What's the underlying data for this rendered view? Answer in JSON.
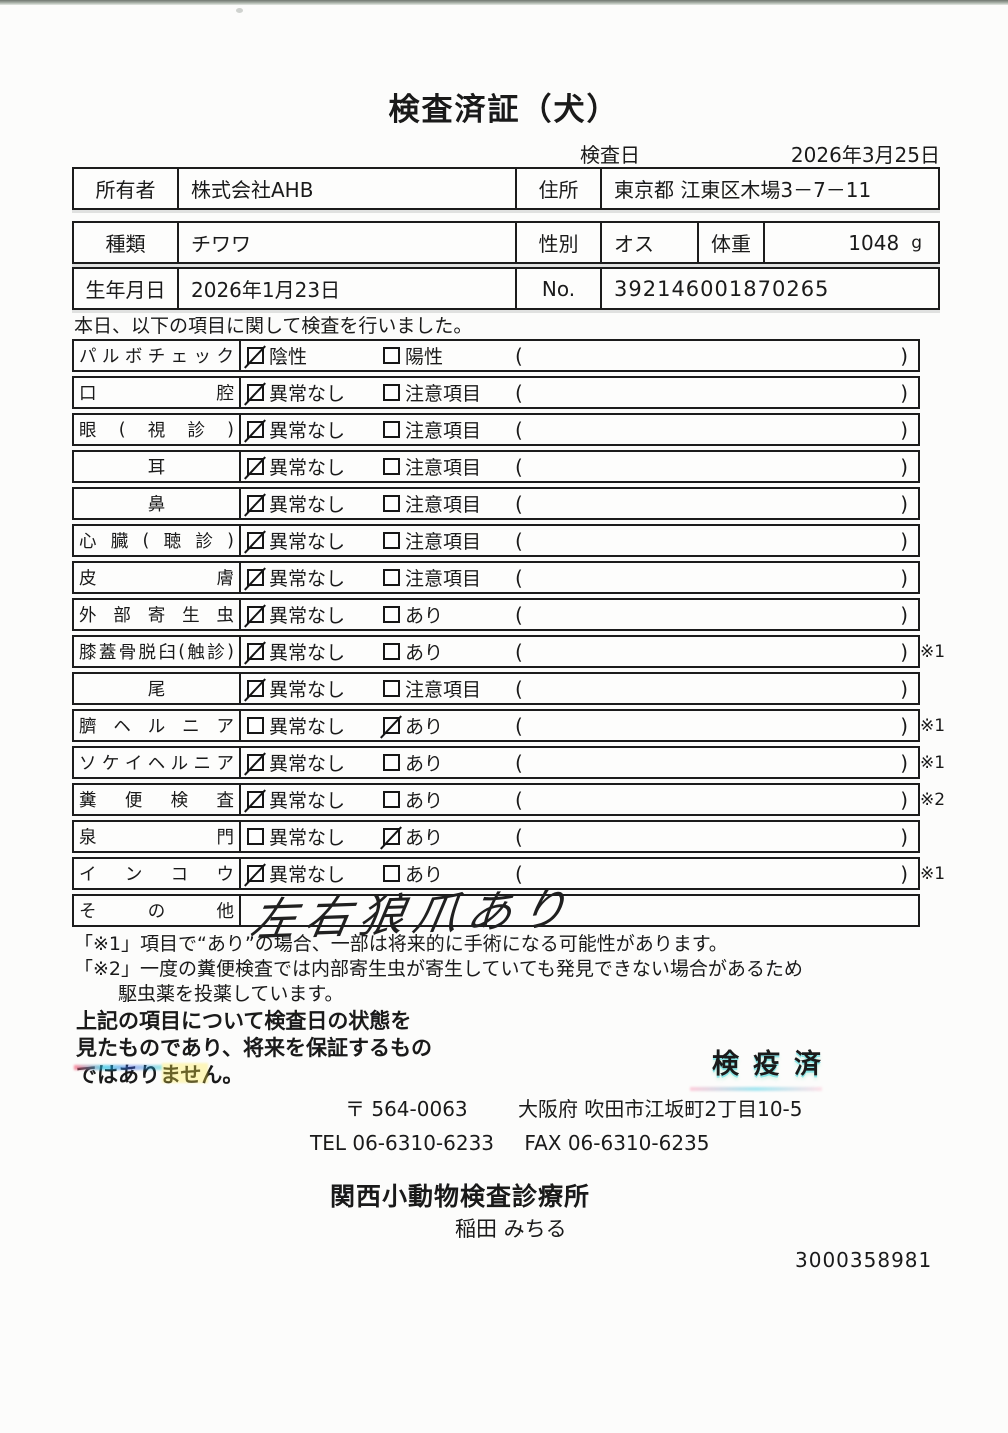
{
  "document": {
    "title": "検査済証（犬）",
    "inspection_date_label": "検査日",
    "inspection_date": "2026年3月25日",
    "owner": {
      "label": "所有者",
      "value": "株式会社AHB"
    },
    "address": {
      "label": "住所",
      "value": "東京都 江東区木場3－7－11"
    },
    "breed": {
      "label": "種類",
      "value": "チワワ"
    },
    "sex": {
      "label": "性別",
      "value": "オス"
    },
    "weight": {
      "label": "体重",
      "value": "1048",
      "unit": "g"
    },
    "birthdate": {
      "label": "生年月日",
      "value": "2026年1月23日"
    },
    "number": {
      "label": "No.",
      "value": "392146001870265"
    },
    "intro": "本日、以下の項目に関して検査を行いました。",
    "exam": {
      "paren_open": "(",
      "paren_close": ")",
      "rows": [
        {
          "label": "パルボチェック",
          "opt1": "陰性",
          "opt2": "陽性",
          "checked": 1,
          "note": ""
        },
        {
          "label": "口腔",
          "opt1": "異常なし",
          "opt2": "注意項目",
          "checked": 1,
          "note": ""
        },
        {
          "label": "眼(視診)",
          "opt1": "異常なし",
          "opt2": "注意項目",
          "checked": 1,
          "note": ""
        },
        {
          "label": "耳",
          "opt1": "異常なし",
          "opt2": "注意項目",
          "checked": 1,
          "note": ""
        },
        {
          "label": "鼻",
          "opt1": "異常なし",
          "opt2": "注意項目",
          "checked": 1,
          "note": ""
        },
        {
          "label": "心臓(聴診)",
          "opt1": "異常なし",
          "opt2": "注意項目",
          "checked": 1,
          "note": ""
        },
        {
          "label": "皮膚",
          "opt1": "異常なし",
          "opt2": "注意項目",
          "checked": 1,
          "note": ""
        },
        {
          "label": "外部寄生虫",
          "opt1": "異常なし",
          "opt2": "あり",
          "checked": 1,
          "note": ""
        },
        {
          "label": "膝蓋骨脱臼(触診)",
          "opt1": "異常なし",
          "opt2": "あり",
          "checked": 1,
          "note": "※1"
        },
        {
          "label": "尾",
          "opt1": "異常なし",
          "opt2": "注意項目",
          "checked": 1,
          "note": ""
        },
        {
          "label": "臍ヘルニア",
          "opt1": "異常なし",
          "opt2": "あり",
          "checked": 2,
          "note": "※1"
        },
        {
          "label": "ソケイヘルニア",
          "opt1": "異常なし",
          "opt2": "あり",
          "checked": 1,
          "note": "※1"
        },
        {
          "label": "糞便検査",
          "opt1": "異常なし",
          "opt2": "あり",
          "checked": 1,
          "note": "※2"
        },
        {
          "label": "泉門",
          "opt1": "異常なし",
          "opt2": "あり",
          "checked": 2,
          "note": ""
        },
        {
          "label": "インコウ",
          "opt1": "異常なし",
          "opt2": "あり",
          "checked": 1,
          "note": "※1"
        },
        {
          "label": "その他",
          "handwritten": "左右狼爪あり"
        }
      ]
    },
    "notes": [
      "「※1」項目で“あり”の場合、一部は将来的に手術になる可能性があります。",
      "「※2」一度の糞便検査では内部寄生虫が寄生していても発見できない場合があるため",
      "駆虫薬を投薬しています。"
    ],
    "closing_lines": [
      "上記の項目について検査日の状態を",
      "見たものであり、将来を保証するもの",
      "ではありません。"
    ],
    "stamp": "検疫済",
    "clinic": {
      "postal": "〒 564-0063",
      "address": "大阪府 吹田市江坂町2丁目10-5",
      "tel": "TEL 06-6310-6233",
      "fax": "FAX 06-6310-6235",
      "name": "関西小動物検査診療所",
      "inspector": "稲田 みちる"
    },
    "serial": "3000358981",
    "colors": {
      "ink": "#1a1a1a",
      "stamp_fringe_cyan": "#00c8d7",
      "artifact_yellow": "#ffeb46"
    }
  }
}
